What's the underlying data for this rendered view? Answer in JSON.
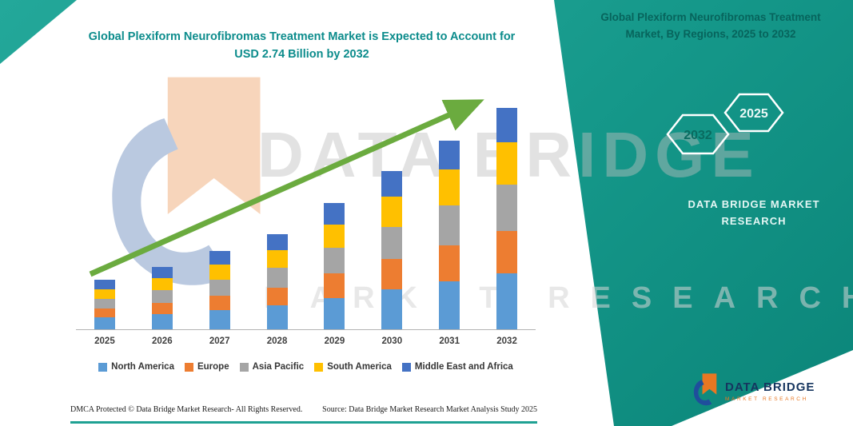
{
  "header": {
    "title": "Global Plexiform Neurofibromas Treatment Market is Expected to Account for USD 2.74 Billion by 2032"
  },
  "right_panel": {
    "title": "Global Plexiform Neurofibromas Treatment Market, By Regions, 2025 to 2032",
    "hexagon_years": [
      "2032",
      "2025"
    ],
    "brand_text": "DATA BRIDGE MARKET RESEARCH",
    "band_color": "#15988a"
  },
  "watermark": {
    "line1": "DATA BRIDGE",
    "line2": "MARKET RESEARCH"
  },
  "footer": {
    "dmca": "DMCA Protected © Data Bridge Market Research-  All Rights Reserved.",
    "source": "Source: Data Bridge Market Research  Market Analysis Study 2025",
    "logo_title": "DATA BRIDGE",
    "logo_subtitle": "MARKET RESEARCH"
  },
  "chart_data": {
    "type": "bar",
    "stacked": true,
    "title": "Global Plexiform Neurofibromas Treatment Market is Expected to Account for USD 2.74 Billion by 2032",
    "unit": "USD Billion",
    "categories": [
      "2025",
      "2026",
      "2027",
      "2028",
      "2029",
      "2030",
      "2031",
      "2032"
    ],
    "series": [
      {
        "name": "North America",
        "color": "#5B9BD5",
        "values": [
          0.15,
          0.19,
          0.24,
          0.3,
          0.39,
          0.5,
          0.59,
          0.69
        ]
      },
      {
        "name": "Europe",
        "color": "#ED7D31",
        "values": [
          0.11,
          0.14,
          0.18,
          0.22,
          0.3,
          0.37,
          0.45,
          0.53
        ]
      },
      {
        "name": "Asia Pacific",
        "color": "#A5A5A5",
        "values": [
          0.12,
          0.15,
          0.19,
          0.24,
          0.32,
          0.4,
          0.49,
          0.57
        ]
      },
      {
        "name": "South America",
        "color": "#FFC000",
        "values": [
          0.12,
          0.15,
          0.19,
          0.22,
          0.29,
          0.37,
          0.45,
          0.52
        ]
      },
      {
        "name": "Middle East and Africa",
        "color": "#4472C4",
        "values": [
          0.11,
          0.14,
          0.17,
          0.2,
          0.26,
          0.32,
          0.36,
          0.43
        ]
      }
    ],
    "totals": [
      0.61,
      0.77,
      0.97,
      1.18,
      1.56,
      1.96,
      2.34,
      2.74
    ],
    "ylim": [
      0,
      2.9
    ],
    "legend_position": "bottom",
    "grid": false,
    "annotations": [
      "upward green trend arrow from 2025 to 2032"
    ],
    "arrow_color": "#6BAB3F"
  }
}
